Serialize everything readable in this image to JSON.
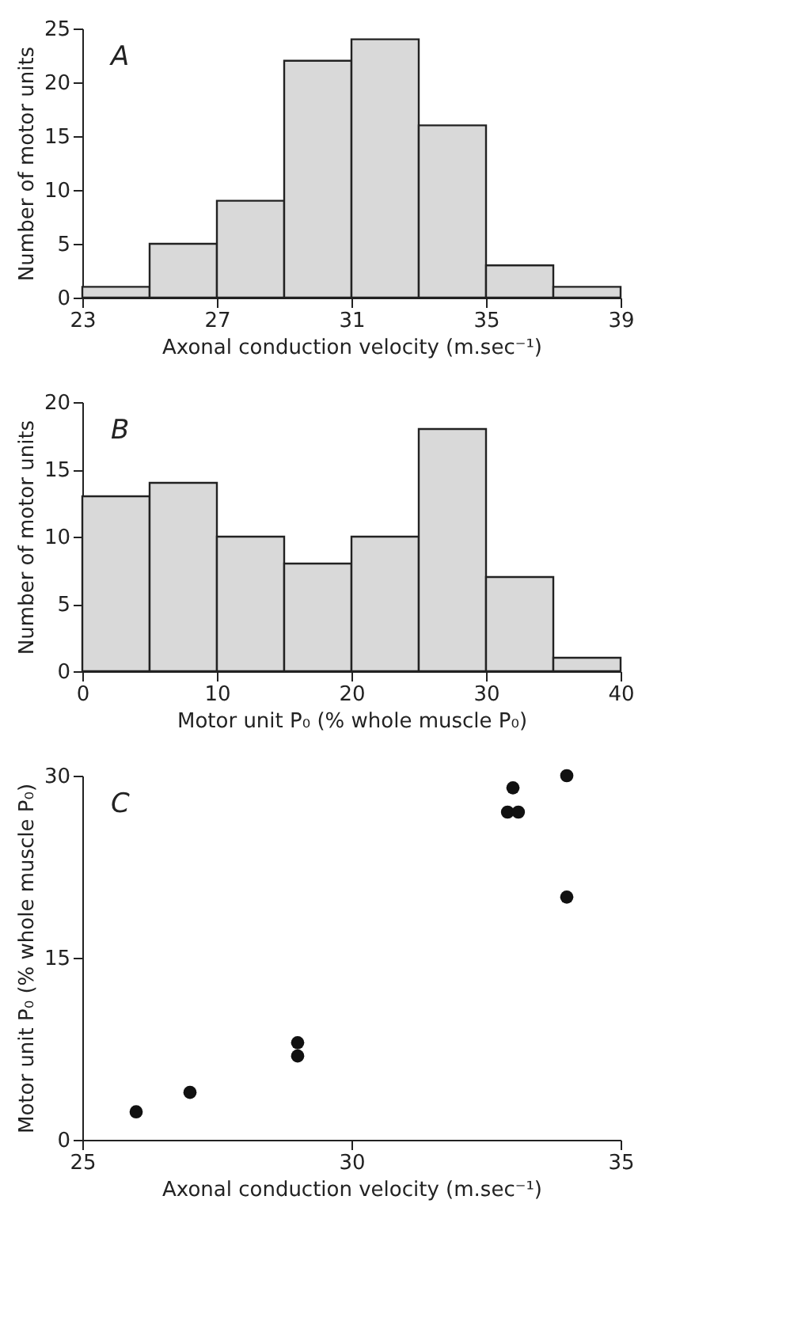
{
  "chart_data": [
    {
      "type": "histogram",
      "annotations": [
        "A"
      ],
      "xlabel": "Axonal conduction velocity (m.sec⁻¹)",
      "ylabel": "Number of motor units",
      "bins": [
        23,
        25,
        27,
        29,
        31,
        33,
        35,
        37,
        39
      ],
      "values": [
        1,
        5,
        9,
        22,
        24,
        16,
        3,
        1
      ],
      "color": "#d9d9d9",
      "xlim": [
        23,
        39
      ],
      "xticks": [
        23,
        27,
        31,
        35,
        39
      ],
      "ylim": [
        0,
        25
      ],
      "yticks": [
        0,
        5,
        10,
        15,
        20,
        25
      ]
    },
    {
      "type": "histogram",
      "annotations": [
        "B"
      ],
      "xlabel": "Motor unit P₀ (% whole muscle P₀)",
      "ylabel": "Number of motor units",
      "bins": [
        0,
        5,
        10,
        15,
        20,
        25,
        30,
        35,
        40
      ],
      "values": [
        13,
        14,
        10,
        8,
        10,
        18,
        7,
        1
      ],
      "color": "#d9d9d9",
      "xlim": [
        0,
        40
      ],
      "xticks": [
        0,
        10,
        20,
        30,
        40
      ],
      "ylim": [
        0,
        20
      ],
      "yticks": [
        0,
        5,
        10,
        15,
        20
      ]
    },
    {
      "type": "scatter",
      "annotations": [
        "C"
      ],
      "xlabel": "Axonal conduction velocity (m.sec⁻¹)",
      "ylabel": "Motor unit P₀ (% whole muscle P₀)",
      "marker": "circle",
      "series": [
        {
          "color": "#111111",
          "x": [
            26,
            27,
            29,
            29,
            32.9,
            33.1,
            33,
            34,
            34
          ],
          "values": [
            2.3,
            3.9,
            8,
            6.9,
            27,
            27,
            29,
            30,
            20
          ]
        }
      ],
      "xlim": [
        25,
        35
      ],
      "xticks": [
        25,
        30,
        35
      ],
      "ylim": [
        0,
        30
      ],
      "yticks": [
        0,
        15,
        30
      ]
    }
  ]
}
